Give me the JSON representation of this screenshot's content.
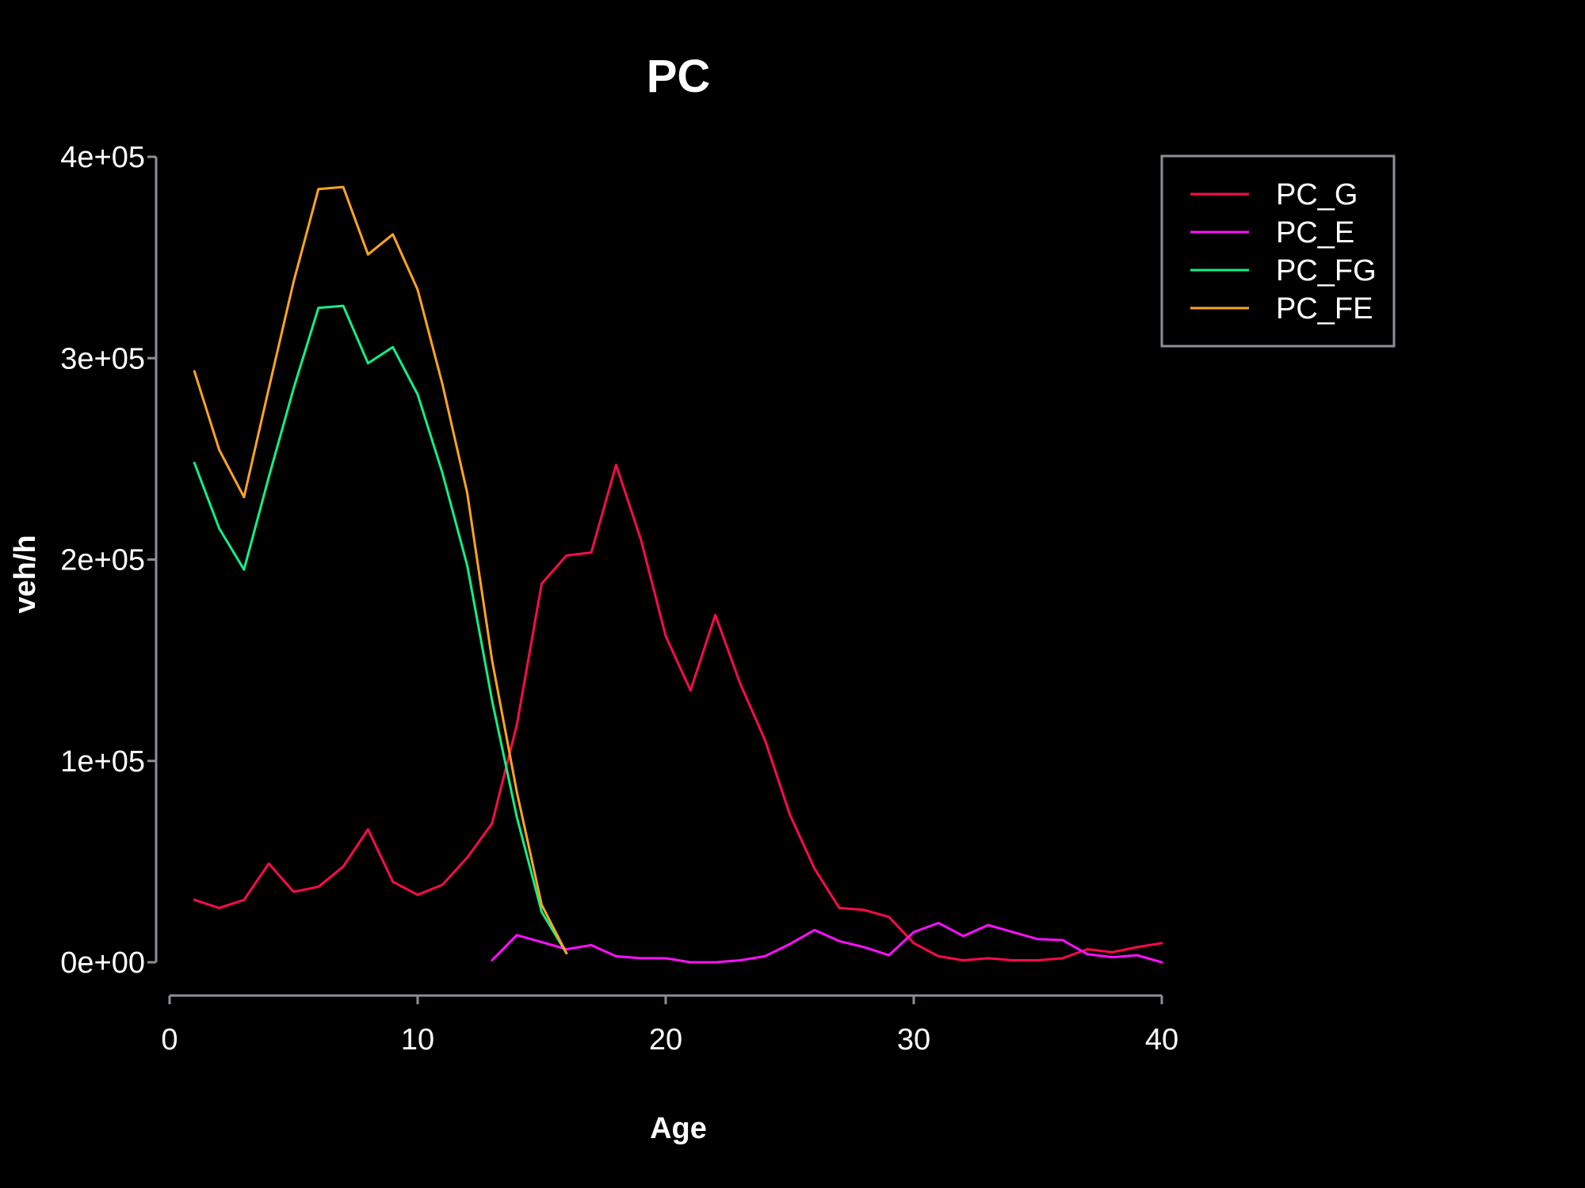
{
  "colors": {
    "background": "#000000",
    "text": "#ffffff",
    "axis": "#8c8f96"
  },
  "chart_data": {
    "type": "line",
    "title": "PC",
    "xlabel": "Age",
    "ylabel": "veh/h",
    "xlim": [
      0,
      40
    ],
    "ylim": [
      0,
      400000
    ],
    "x_ticks": [
      0,
      10,
      20,
      30,
      40
    ],
    "x_tick_labels": [
      "0",
      "10",
      "20",
      "30",
      "40"
    ],
    "y_ticks": [
      0,
      100000,
      200000,
      300000,
      400000
    ],
    "y_tick_labels": [
      "0e+00",
      "1e+05",
      "2e+05",
      "3e+05",
      "4e+05"
    ],
    "grid": false,
    "legend_position": "top-right",
    "series": [
      {
        "name": "PC_G",
        "color": "#ff0a4b",
        "x": [
          1,
          2,
          3,
          4,
          5,
          6,
          7,
          8,
          9,
          10,
          11,
          12,
          13,
          14,
          15,
          16,
          17,
          18,
          19,
          20,
          21,
          22,
          23,
          24,
          25,
          26,
          27,
          28,
          29,
          30,
          31,
          32,
          33,
          34,
          35,
          36,
          37,
          38,
          39,
          40
        ],
        "y": [
          31000,
          27000,
          31000,
          49000,
          35000,
          37500,
          47500,
          66000,
          40000,
          33500,
          38500,
          52000,
          69000,
          118000,
          188000,
          202000,
          203500,
          247000,
          210000,
          162000,
          135000,
          172500,
          138500,
          110500,
          73500,
          46500,
          27000,
          26000,
          22500,
          9500,
          3000,
          1000,
          2000,
          1000,
          1000,
          2000,
          6500,
          5000,
          7500,
          9500
        ]
      },
      {
        "name": "PC_E",
        "color": "#ff10ff",
        "x": [
          13,
          14,
          15,
          16,
          17,
          18,
          19,
          20,
          21,
          22,
          23,
          24,
          25,
          26,
          27,
          28,
          29,
          30,
          31,
          32,
          33,
          34,
          35,
          36,
          37,
          38,
          39,
          40
        ],
        "y": [
          1000,
          13500,
          10000,
          6500,
          8500,
          3000,
          2000,
          2000,
          0,
          0,
          1000,
          3000,
          9000,
          16000,
          10500,
          7500,
          3500,
          15000,
          19500,
          13000,
          18500,
          15000,
          11500,
          11000,
          4000,
          2500,
          3500,
          0
        ]
      },
      {
        "name": "PC_FG",
        "color": "#10f085",
        "x": [
          1,
          2,
          3,
          4,
          5,
          6,
          7,
          8,
          9,
          10,
          11,
          12,
          13,
          14,
          15,
          16
        ],
        "y": [
          248000,
          215500,
          195000,
          241000,
          285000,
          325000,
          326000,
          297500,
          305500,
          282000,
          243000,
          197000,
          130000,
          72000,
          25000,
          4500
        ]
      },
      {
        "name": "PC_FE",
        "color": "#ffa51e",
        "x": [
          1,
          2,
          3,
          4,
          5,
          6,
          7,
          8,
          9,
          10,
          11,
          12,
          13,
          14,
          15,
          16
        ],
        "y": [
          293500,
          254500,
          231000,
          285000,
          338000,
          384000,
          385000,
          351500,
          361500,
          334000,
          287000,
          233000,
          150000,
          84500,
          28500,
          4500
        ]
      }
    ]
  }
}
